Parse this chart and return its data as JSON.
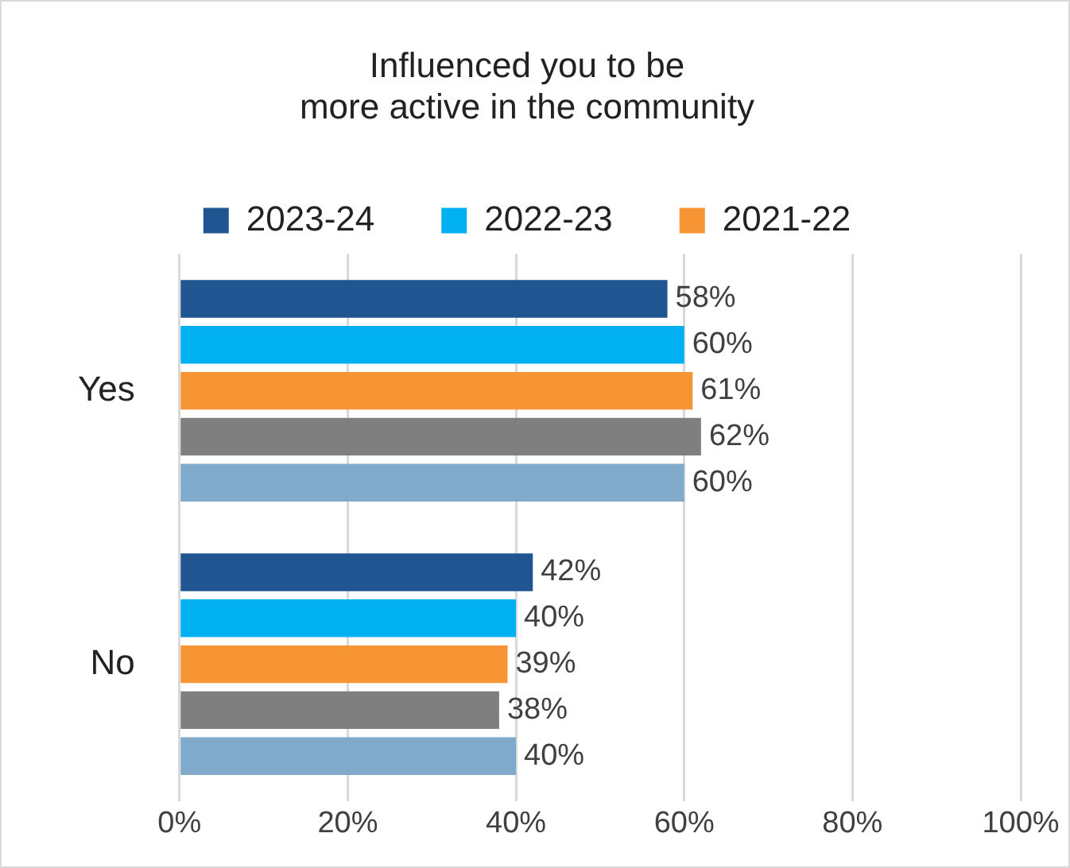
{
  "chart_data": {
    "type": "bar",
    "orientation": "horizontal",
    "title": "Influenced you to be\nmore active in the community",
    "categories": [
      "Yes",
      "No"
    ],
    "series": [
      {
        "name": "2023-24",
        "color": "#1f5591",
        "values": [
          58,
          42
        ],
        "value_labels": [
          "58%",
          "42%"
        ]
      },
      {
        "name": "2022-23",
        "color": "#00b0f0",
        "values": [
          60,
          40
        ],
        "value_labels": [
          "60%",
          "40%"
        ]
      },
      {
        "name": "2021-22",
        "color": "#f79433",
        "values": [
          61,
          39
        ],
        "value_labels": [
          "61%",
          "39%"
        ]
      },
      {
        "color": "#7f7f7f",
        "values": [
          62,
          38
        ],
        "value_labels": [
          "62%",
          "38%"
        ]
      },
      {
        "color": "#7faacc",
        "values": [
          60,
          40
        ],
        "value_labels": [
          "60%",
          "40%"
        ]
      }
    ],
    "xlim": [
      0,
      100
    ],
    "xticks": [
      {
        "value": 0,
        "label": "0%"
      },
      {
        "value": 20,
        "label": "20%"
      },
      {
        "value": 40,
        "label": "40%"
      },
      {
        "value": 60,
        "label": "60%"
      },
      {
        "value": 80,
        "label": "80%"
      },
      {
        "value": 100,
        "label": "100%"
      }
    ],
    "grid": "x",
    "legend": "top"
  }
}
